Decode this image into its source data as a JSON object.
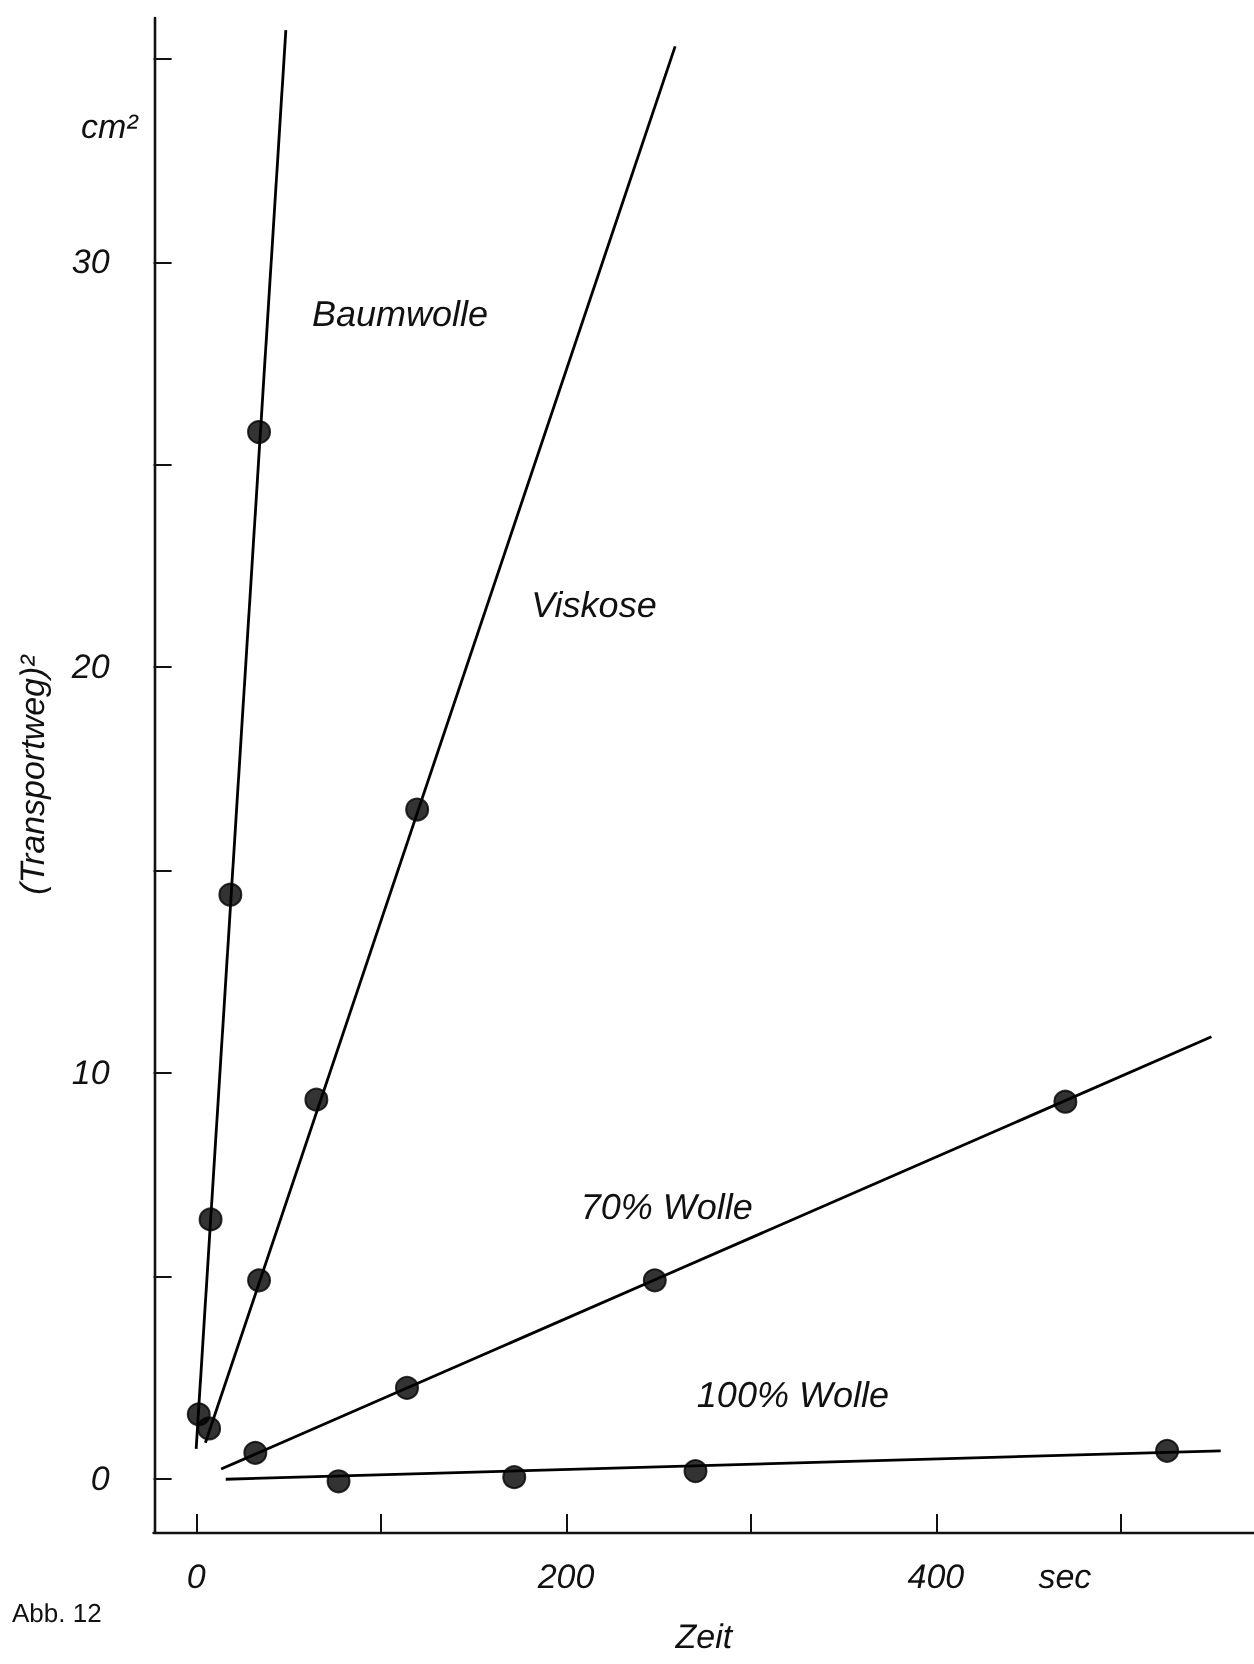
{
  "chart_data": {
    "type": "scatter",
    "xlabel": "Zeit",
    "ylabel": "(Transportweg)²",
    "xlim": [
      -23,
      572
    ],
    "ylim": [
      -1.3,
      36
    ],
    "xticks": [
      0,
      {
        "value": 100,
        "label": null
      },
      200,
      {
        "value": 300,
        "label": null
      },
      400,
      {
        "value": 500,
        "label": null
      }
    ],
    "yticks": [
      0,
      {
        "value": 5,
        "label": null
      },
      10,
      {
        "value": 15,
        "label": null
      },
      20,
      {
        "value": 25,
        "label": null
      },
      30,
      {
        "value": 35,
        "label": null
      }
    ],
    "grid": false,
    "marker": "circle",
    "series": [
      {
        "color": "#000000",
        "x": [
          1.4,
          7.8,
          18.5,
          34
        ],
        "values": [
          1.6,
          6.4,
          14.4,
          25.8
        ]
      },
      {
        "type": "line",
        "name": "Baumwolle",
        "color": "#000000",
        "marker": "none",
        "x": [
          0,
          48.5
        ],
        "values": [
          0.75,
          35.7
        ]
      },
      {
        "color": "#000000",
        "x": [
          7,
          34,
          65,
          119.5
        ],
        "values": [
          1.25,
          4.9,
          9.35,
          16.5
        ]
      },
      {
        "type": "line",
        "name": "Viskose",
        "color": "#000000",
        "marker": "none",
        "x": [
          5,
          259
        ],
        "values": [
          0.9,
          35.3
        ]
      },
      {
        "color": "#000000",
        "x": [
          32,
          114,
          248,
          470
        ],
        "values": [
          0.65,
          2.25,
          4.9,
          9.3
        ]
      },
      {
        "type": "line",
        "name": "70% Wolle",
        "color": "#000000",
        "marker": "none",
        "x": [
          13.5,
          549
        ],
        "values": [
          0.25,
          10.9
        ]
      },
      {
        "color": "#000000",
        "x": [
          77,
          172,
          270,
          525
        ],
        "values": [
          -0.05,
          0.05,
          0.2,
          0.7
        ]
      },
      {
        "type": "line",
        "name": "100% Wolle",
        "color": "#000000",
        "marker": "none",
        "x": [
          16,
          554
        ],
        "values": [
          0,
          0.7
        ]
      }
    ],
    "annotations": [
      "cm²",
      "sec",
      "Abb. 12"
    ]
  }
}
